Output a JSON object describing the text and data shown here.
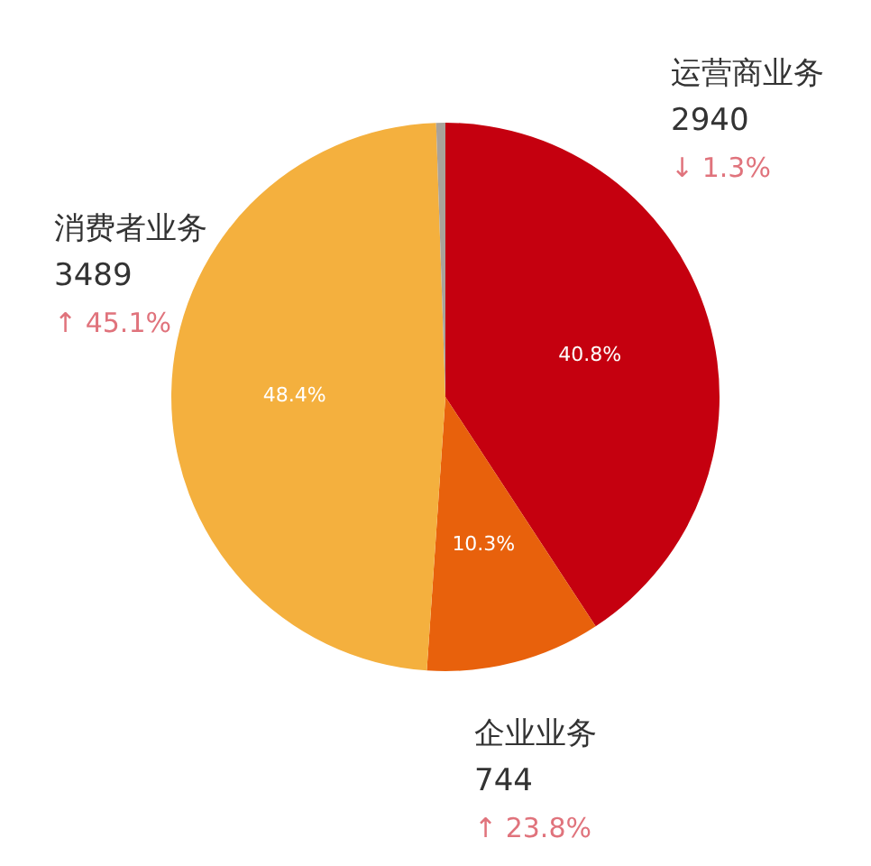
{
  "chart_data": {
    "type": "pie",
    "categories": [
      "运营商业务",
      "企业业务",
      "消费者业务",
      null
    ],
    "values": [
      2940,
      744,
      3489,
      39
    ],
    "colors": [
      "#c5000f",
      "#e8610c",
      "#f4b03e",
      "#a9a29a"
    ],
    "value_labels": [
      "2940",
      "744",
      "3489",
      null
    ],
    "annotations": [
      {
        "text": "40.8%",
        "x": "运营商业务"
      },
      {
        "text": "↓ 1.3%",
        "x": "运营商业务"
      },
      {
        "text": "10.3%",
        "x": "企业业务"
      },
      {
        "text": "↑ 23.8%",
        "x": "企业业务"
      },
      {
        "text": "48.4%",
        "x": "消费者业务"
      },
      {
        "text": "↑ 45.1%",
        "x": "消费者业务"
      }
    ]
  }
}
